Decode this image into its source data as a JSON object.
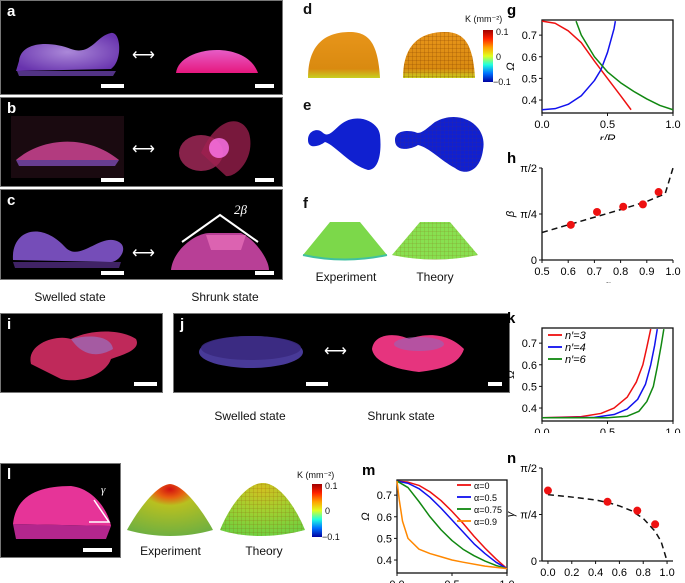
{
  "panels": {
    "a": {
      "label": "a"
    },
    "b": {
      "label": "b"
    },
    "c": {
      "label": "c",
      "angle_label": "2β"
    },
    "d": {
      "label": "d"
    },
    "e": {
      "label": "e"
    },
    "f": {
      "label": "f",
      "exp_caption": "Experiment",
      "theory_caption": "Theory"
    },
    "i": {
      "label": "i"
    },
    "j": {
      "label": "j"
    },
    "l": {
      "label": "l",
      "angle_label": "γ",
      "exp_caption": "Experiment",
      "theory_caption": "Theory"
    },
    "abc_captions": {
      "left": "Swelled state",
      "right": "Shrunk state"
    },
    "j_captions": {
      "left": "Swelled state",
      "right": "Shrunk state"
    },
    "arrow_symbol": "⟷"
  },
  "colorbars": {
    "title": "K (mm⁻²)",
    "ticks": [
      "0.1",
      "0",
      "−0.1"
    ]
  },
  "colors": {
    "red": "#ee1111",
    "blue": "#1111ee",
    "green": "#118811",
    "orange": "#ff8800",
    "marker": "#ee1111"
  },
  "chart_data": [
    {
      "id": "g",
      "panel_label": "g",
      "type": "line",
      "xlabel": "r/R",
      "ylabel": "Ω",
      "xlim": [
        0,
        1
      ],
      "ylim": [
        0.34,
        0.77
      ],
      "xticks": [
        "0.0",
        "0.5",
        "1.0"
      ],
      "xtick_values": [
        0,
        0.5,
        1.0
      ],
      "yticks": [
        "0.4",
        "0.5",
        "0.6",
        "0.7"
      ],
      "ytick_values": [
        0.4,
        0.5,
        0.6,
        0.7
      ],
      "series": [
        {
          "name": "red",
          "color": "#ee1111",
          "x": [
            0,
            0.1,
            0.2,
            0.3,
            0.4,
            0.5,
            0.6,
            0.68
          ],
          "y": [
            0.765,
            0.755,
            0.72,
            0.665,
            0.58,
            0.5,
            0.42,
            0.355
          ]
        },
        {
          "name": "blue",
          "color": "#1111ee",
          "x": [
            0,
            0.1,
            0.2,
            0.3,
            0.4,
            0.45,
            0.5,
            0.55,
            0.56
          ],
          "y": [
            0.355,
            0.36,
            0.38,
            0.42,
            0.49,
            0.54,
            0.62,
            0.73,
            0.765
          ]
        },
        {
          "name": "green",
          "color": "#118811",
          "x": [
            0.26,
            0.3,
            0.4,
            0.5,
            0.6,
            0.7,
            0.8,
            0.9,
            1.0
          ],
          "y": [
            0.765,
            0.7,
            0.6,
            0.53,
            0.48,
            0.44,
            0.405,
            0.375,
            0.355
          ]
        }
      ]
    },
    {
      "id": "h",
      "panel_label": "h",
      "type": "scatter",
      "xlabel": "α",
      "ylabel": "β",
      "xlim": [
        0.5,
        1.0
      ],
      "ylim": [
        0,
        1.5708
      ],
      "xticks": [
        "0.5",
        "0.6",
        "0.7",
        "0.8",
        "0.9",
        "1.0"
      ],
      "xtick_values": [
        0.5,
        0.6,
        0.7,
        0.8,
        0.9,
        1.0
      ],
      "yticks": [
        "0",
        "π/4",
        "π/2"
      ],
      "ytick_values": [
        0,
        0.7854,
        1.5708
      ],
      "points": {
        "x": [
          0.61,
          0.71,
          0.81,
          0.885,
          0.945
        ],
        "y": [
          0.6,
          0.82,
          0.91,
          0.95,
          1.16
        ]
      },
      "fit": {
        "x": [
          0.5,
          0.6,
          0.7,
          0.8,
          0.9,
          0.97,
          1.0
        ],
        "y": [
          0.47,
          0.6,
          0.73,
          0.86,
          1.0,
          1.13,
          1.57
        ]
      }
    },
    {
      "id": "k",
      "panel_label": "k",
      "type": "line",
      "xlabel": "r/R",
      "ylabel": "Ω",
      "xlim": [
        0,
        1
      ],
      "ylim": [
        0.34,
        0.77
      ],
      "xticks": [
        "0.0",
        "0.5",
        "1.0"
      ],
      "xtick_values": [
        0,
        0.5,
        1.0
      ],
      "yticks": [
        "0.4",
        "0.5",
        "0.6",
        "0.7"
      ],
      "ytick_values": [
        0.4,
        0.5,
        0.6,
        0.7
      ],
      "legend": "top-left",
      "series": [
        {
          "name": "n′=3",
          "color": "#ee1111",
          "x": [
            0,
            0.3,
            0.45,
            0.55,
            0.65,
            0.72,
            0.77,
            0.8,
            0.83
          ],
          "y": [
            0.355,
            0.36,
            0.375,
            0.4,
            0.45,
            0.52,
            0.6,
            0.68,
            0.765
          ]
        },
        {
          "name": "n′=4",
          "color": "#1111ee",
          "x": [
            0,
            0.4,
            0.55,
            0.65,
            0.73,
            0.79,
            0.83,
            0.86,
            0.88
          ],
          "y": [
            0.355,
            0.357,
            0.37,
            0.395,
            0.44,
            0.51,
            0.6,
            0.69,
            0.765
          ]
        },
        {
          "name": "n′=6",
          "color": "#118811",
          "x": [
            0,
            0.5,
            0.65,
            0.74,
            0.8,
            0.85,
            0.88,
            0.91,
            0.93
          ],
          "y": [
            0.355,
            0.355,
            0.362,
            0.385,
            0.43,
            0.5,
            0.59,
            0.69,
            0.765
          ]
        }
      ]
    },
    {
      "id": "m",
      "panel_label": "m",
      "type": "line",
      "xlabel": "r/R",
      "ylabel": "Ω",
      "xlim": [
        0,
        1
      ],
      "ylim": [
        0.34,
        0.77
      ],
      "xticks": [
        "0.0",
        "0.5",
        "1.0"
      ],
      "xtick_values": [
        0,
        0.5,
        1.0
      ],
      "yticks": [
        "0.4",
        "0.5",
        "0.6",
        "0.7"
      ],
      "ytick_values": [
        0.4,
        0.5,
        0.6,
        0.7
      ],
      "legend": "top-right",
      "series": [
        {
          "name": "α=0",
          "color": "#ee1111",
          "x": [
            0,
            0.1,
            0.2,
            0.3,
            0.4,
            0.5,
            0.6,
            0.7,
            0.8,
            0.9,
            1.0
          ],
          "y": [
            0.765,
            0.76,
            0.745,
            0.715,
            0.675,
            0.625,
            0.57,
            0.51,
            0.455,
            0.405,
            0.36
          ]
        },
        {
          "name": "α=0.5",
          "color": "#1111ee",
          "x": [
            0,
            0.1,
            0.2,
            0.3,
            0.4,
            0.5,
            0.6,
            0.7,
            0.8,
            0.9,
            1.0
          ],
          "y": [
            0.765,
            0.755,
            0.73,
            0.69,
            0.64,
            0.585,
            0.53,
            0.475,
            0.43,
            0.39,
            0.36
          ]
        },
        {
          "name": "α=0.75",
          "color": "#118811",
          "x": [
            0,
            0.1,
            0.2,
            0.3,
            0.4,
            0.5,
            0.6,
            0.7,
            0.8,
            0.9,
            1.0
          ],
          "y": [
            0.765,
            0.735,
            0.67,
            0.6,
            0.54,
            0.49,
            0.45,
            0.42,
            0.395,
            0.375,
            0.36
          ]
        },
        {
          "name": "α=0.9",
          "color": "#ff8800",
          "x": [
            0,
            0.02,
            0.05,
            0.1,
            0.2,
            0.3,
            0.4,
            0.5,
            0.6,
            0.8,
            1.0
          ],
          "y": [
            0.765,
            0.68,
            0.58,
            0.5,
            0.45,
            0.43,
            0.415,
            0.4,
            0.39,
            0.372,
            0.36
          ]
        }
      ]
    },
    {
      "id": "n",
      "panel_label": "n",
      "type": "scatter",
      "xlabel": "α",
      "ylabel": "γ",
      "xlim": [
        -0.05,
        1.05
      ],
      "ylim": [
        0,
        1.5708
      ],
      "xticks": [
        "0.0",
        "0.2",
        "0.4",
        "0.6",
        "0.8",
        "1.0"
      ],
      "xtick_values": [
        0,
        0.2,
        0.4,
        0.6,
        0.8,
        1.0
      ],
      "yticks": [
        "0",
        "π/4",
        "π/2"
      ],
      "ytick_values": [
        0,
        0.7854,
        1.5708
      ],
      "points": {
        "x": [
          0.0,
          0.5,
          0.75,
          0.9
        ],
        "y": [
          1.19,
          1.0,
          0.85,
          0.62
        ]
      },
      "fit": {
        "x": [
          0,
          0.2,
          0.4,
          0.5,
          0.6,
          0.7,
          0.8,
          0.9,
          0.95,
          1.0
        ],
        "y": [
          1.12,
          1.08,
          1.03,
          0.99,
          0.93,
          0.85,
          0.72,
          0.5,
          0.33,
          0.0
        ]
      }
    }
  ]
}
